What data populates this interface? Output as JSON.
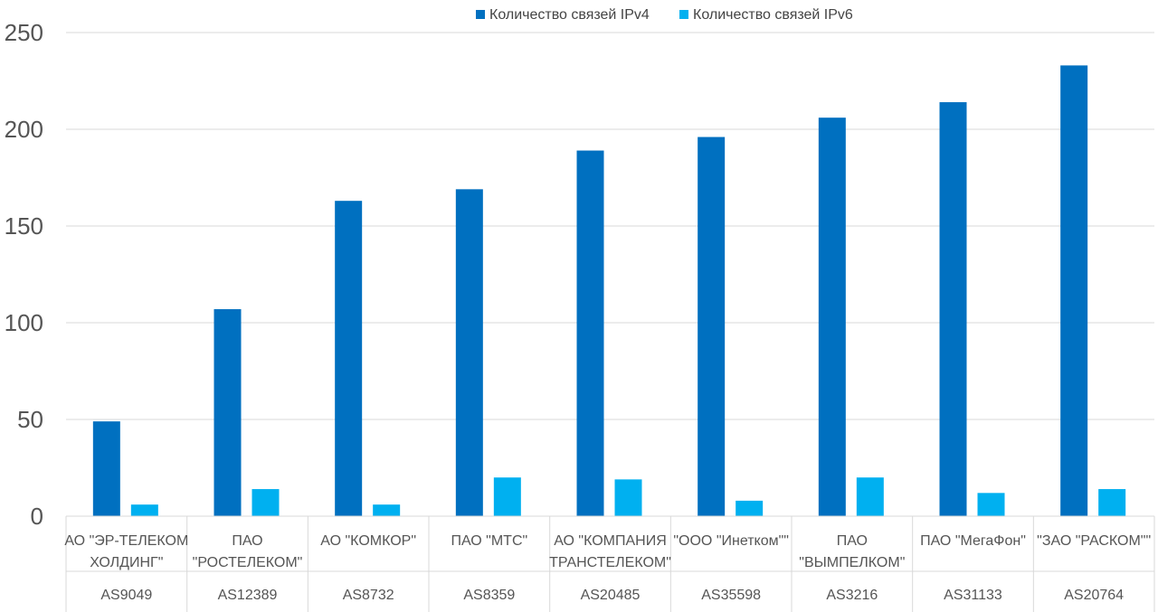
{
  "chart_data": {
    "type": "bar",
    "title": "",
    "xlabel": "",
    "ylabel": "",
    "ylim": [
      0,
      250
    ],
    "yticks": [
      0,
      50,
      100,
      150,
      200,
      250
    ],
    "grid": true,
    "legend_position": "top",
    "categories": [
      {
        "name": [
          "АО \"ЭР-ТЕЛЕКОМ",
          "ХОЛДИНГ\""
        ],
        "as": "AS9049"
      },
      {
        "name": [
          "ПАО",
          "\"РОСТЕЛЕКОМ\""
        ],
        "as": "AS12389"
      },
      {
        "name": [
          "АО \"КОМКОР\""
        ],
        "as": "AS8732"
      },
      {
        "name": [
          "ПАО \"МТС\""
        ],
        "as": "AS8359"
      },
      {
        "name": [
          "АО \"КОМПАНИЯ",
          "ТРАНСТЕЛЕКОМ\""
        ],
        "as": "AS20485"
      },
      {
        "name": [
          "\"ООО \"Инетком\"\""
        ],
        "as": "AS35598"
      },
      {
        "name": [
          "ПАО",
          "\"ВЫМПЕЛКОМ\""
        ],
        "as": "AS3216"
      },
      {
        "name": [
          "ПАО \"МегаФон\""
        ],
        "as": "AS31133"
      },
      {
        "name": [
          "\"ЗАО \"РАСКОМ\"\""
        ],
        "as": "AS20764"
      }
    ],
    "series": [
      {
        "name": "Количество связей IPv4",
        "color": "#0070c0",
        "values": [
          49,
          107,
          163,
          169,
          189,
          196,
          206,
          214,
          233
        ]
      },
      {
        "name": "Количество связей IPv6",
        "color": "#00b0f0",
        "values": [
          6,
          14,
          6,
          20,
          19,
          8,
          20,
          12,
          14
        ]
      }
    ]
  }
}
